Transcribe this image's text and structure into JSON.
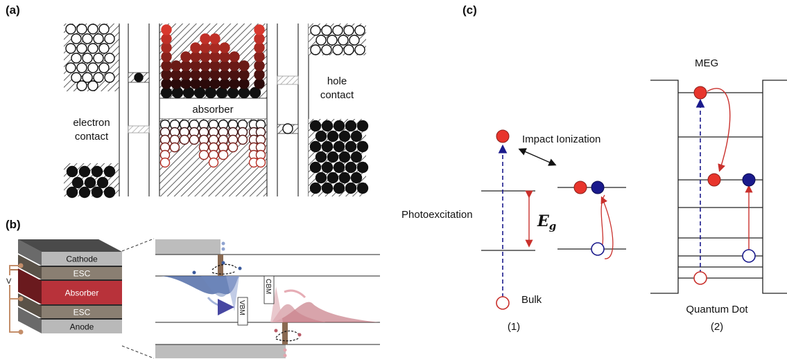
{
  "panels": {
    "a": {
      "label": "(a)",
      "electron_contact": [
        "electron",
        "contact"
      ],
      "hole_contact": [
        "hole",
        "contact"
      ],
      "absorber": "absorber"
    },
    "b": {
      "label": "(b)",
      "stack_layers": [
        "Cathode",
        "ESC",
        "Absorber",
        "ESC",
        "Anode"
      ],
      "voltage": "V",
      "cbm": "CBM",
      "vbm": "VBM"
    },
    "c": {
      "label": "(c)",
      "impact_ionization": "Impact Ionization",
      "photoexcitation": "Photoexcitation",
      "eg_symbol": "E",
      "eg_sub": "g",
      "bulk": "Bulk",
      "meg": "MEG",
      "quantum_dot": "Quantum Dot",
      "sub1": "(1)",
      "sub2": "(2)"
    }
  },
  "colors": {
    "electron": "#e8352c",
    "hole": "#1a1a8c",
    "absorber_red": "#b8323a",
    "esc_brown": "#8a7f72",
    "contact_gray": "#b4b4b4",
    "blue_wave": "#3b5a9c",
    "red_wave": "#b85a66"
  }
}
